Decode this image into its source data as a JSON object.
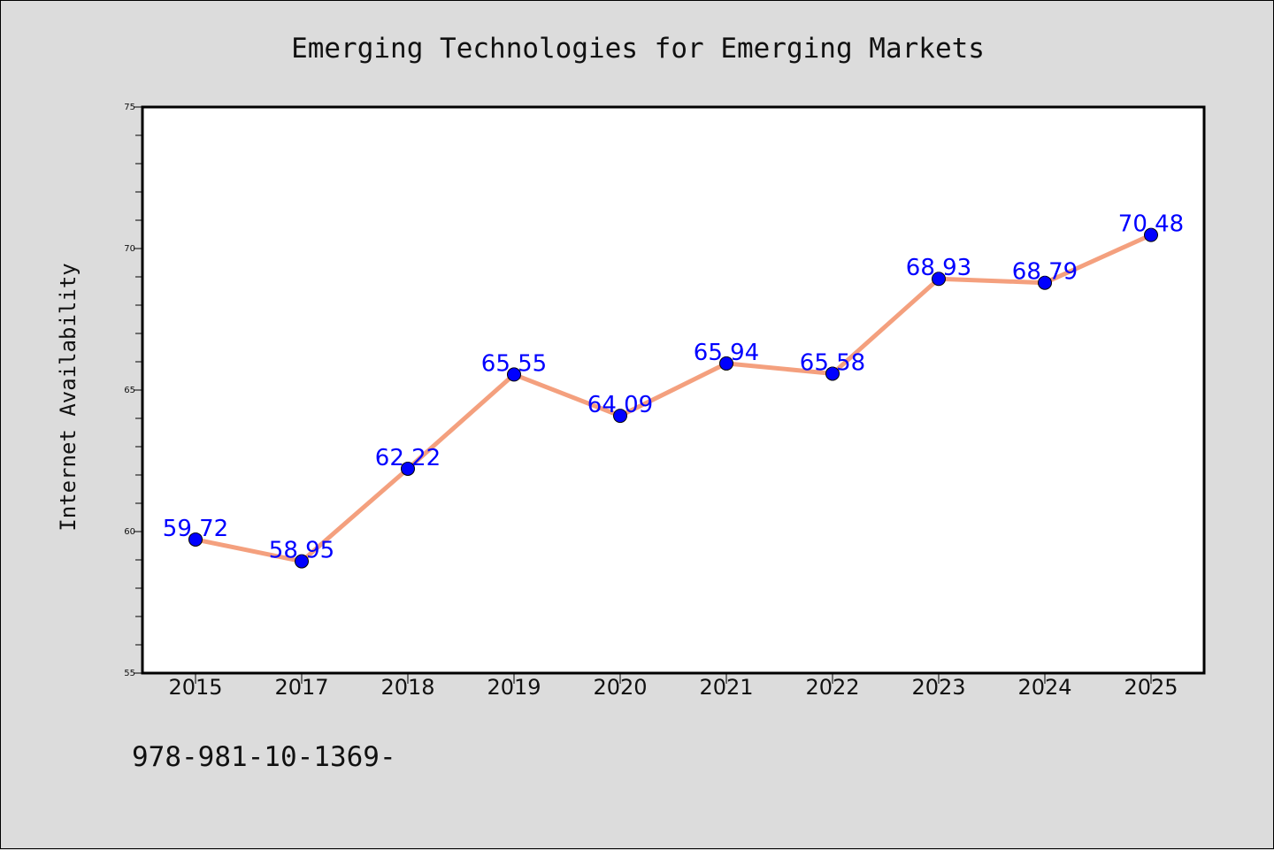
{
  "chart_data": {
    "type": "line",
    "title": "Emerging Technologies for Emerging Markets",
    "xlabel": "",
    "ylabel": "Internet Availability",
    "categories": [
      "2015",
      "2017",
      "2018",
      "2019",
      "2020",
      "2021",
      "2022",
      "2023",
      "2024",
      "2025"
    ],
    "series": [
      {
        "values": [
          59.72,
          58.95,
          62.22,
          65.55,
          64.09,
          65.94,
          65.58,
          68.93,
          68.79,
          70.48
        ]
      }
    ],
    "data_labels": [
      "59.72",
      "58.95",
      "62.22",
      "65.55",
      "64.09",
      "65.94",
      "65.58",
      "68.93",
      "68.79",
      "70.48"
    ],
    "ylim": [
      55,
      75
    ],
    "yticks": [
      55,
      60,
      65,
      70,
      75
    ],
    "grid": false,
    "colors": {
      "line": "#f4a07e",
      "marker": "#0000ff",
      "label": "#0000ff",
      "background": "#dcdcdc",
      "plot": "#ffffff"
    }
  },
  "footer": {
    "text": "978-981-10-1369-"
  }
}
